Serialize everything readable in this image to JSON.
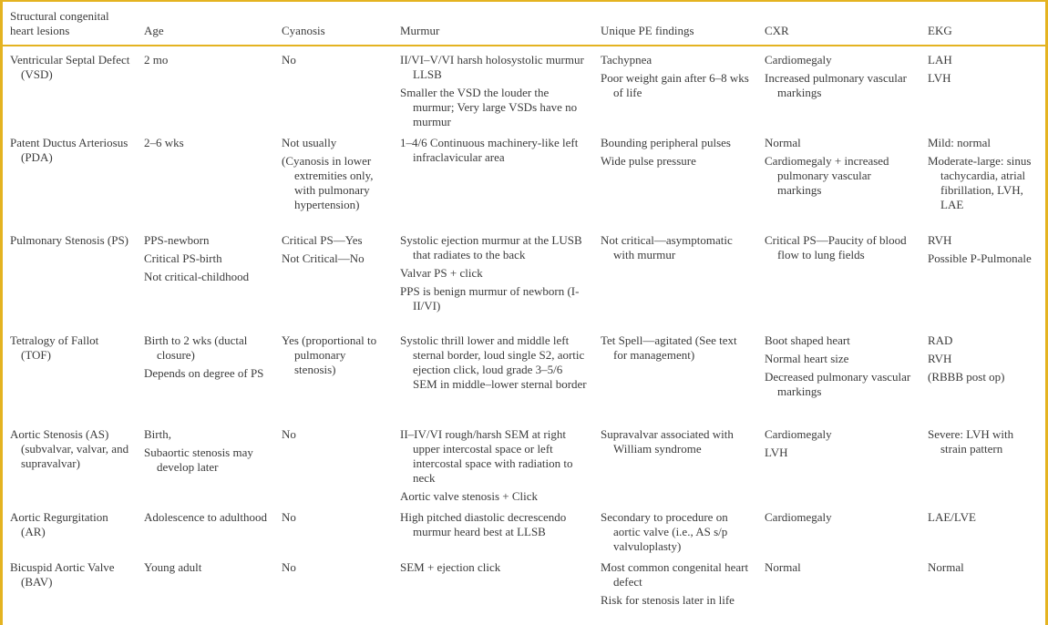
{
  "page": {
    "border_color": "#e4b321",
    "text_color": "#3b3b3b",
    "background_color": "#ffffff"
  },
  "table": {
    "columns": [
      "Structural congenital heart lesions",
      "Age",
      "Cyanosis",
      "Murmur",
      "Unique PE findings",
      "CXR",
      "EKG"
    ],
    "column_keys": [
      "lesion",
      "age",
      "cyanosis",
      "murmur",
      "pe-findings",
      "cxr",
      "ekg"
    ],
    "rows": [
      [
        [
          "Ventricular Septal Defect (VSD)"
        ],
        [
          "2 mo"
        ],
        [
          "No"
        ],
        [
          "II/VI–V/VI harsh holosystolic murmur LLSB",
          "Smaller the VSD the louder the murmur; Very large VSDs have no murmur"
        ],
        [
          "Tachypnea",
          "Poor weight gain after 6–8 wks of life"
        ],
        [
          "Cardiomegaly",
          "Increased pulmonary vascular markings"
        ],
        [
          "LAH",
          "LVH"
        ]
      ],
      [
        [
          "Patent Ductus Arteriosus (PDA)"
        ],
        [
          "2–6 wks"
        ],
        [
          "Not usually",
          "(Cyanosis in lower extremities only, with pulmonary hypertension)"
        ],
        [
          "1–4/6 Continuous machinery-like left infraclavicular area"
        ],
        [
          "Bounding peripheral pulses",
          "Wide pulse pressure"
        ],
        [
          "Normal",
          "Cardiomegaly + increased pulmonary vascular markings"
        ],
        [
          "Mild: normal",
          "Moderate-large: sinus tachycardia, atrial fibrillation, LVH, LAE"
        ]
      ],
      [
        [
          "Pulmonary Stenosis (PS)"
        ],
        [
          "PPS-newborn",
          "Critical PS-birth",
          "Not critical-childhood"
        ],
        [
          "Critical PS—Yes",
          "Not Critical—No"
        ],
        [
          "Systolic ejection murmur at the LUSB that radiates to the back",
          "Valvar PS + click",
          "PPS is benign murmur of newborn (I-II/VI)"
        ],
        [
          "Not critical—asymptomatic with murmur"
        ],
        [
          "Critical PS—Paucity of blood flow to lung fields"
        ],
        [
          "RVH",
          "Possible P-Pulmonale"
        ]
      ],
      [
        [
          "Tetralogy of Fallot (TOF)"
        ],
        [
          "Birth to 2 wks (ductal closure)",
          "Depends on degree of PS"
        ],
        [
          "Yes (proportional to pulmonary stenosis)"
        ],
        [
          "Systolic thrill lower and middle left sternal border, loud single S2, aortic ejection click, loud grade 3–5/6 SEM in middle–lower sternal border"
        ],
        [
          "Tet Spell—agitated (See text for management)"
        ],
        [
          "Boot shaped heart",
          "Normal heart size",
          "Decreased pulmonary vascular markings"
        ],
        [
          "RAD",
          "RVH",
          "(RBBB post op)"
        ]
      ],
      [
        [
          "Aortic Stenosis (AS) (subvalvar, valvar, and supravalvar)"
        ],
        [
          "Birth,",
          "Subaortic stenosis may develop later"
        ],
        [
          "No"
        ],
        [
          "II–IV/VI rough/harsh SEM at right upper intercostal space or left intercostal space with radiation to neck",
          "Aortic valve stenosis + Click"
        ],
        [
          "Supravalvar associated with William syndrome"
        ],
        [
          "Cardiomegaly",
          "LVH"
        ],
        [
          "Severe: LVH with strain pattern"
        ]
      ],
      [
        [
          "Aortic Regurgitation (AR)"
        ],
        [
          "Adolescence to adulthood"
        ],
        [
          "No"
        ],
        [
          "High pitched diastolic decrescendo murmur heard best at LLSB"
        ],
        [
          "Secondary to procedure on aortic valve (i.e., AS s/p valvuloplasty)"
        ],
        [
          "Cardiomegaly"
        ],
        [
          "LAE/LVE"
        ]
      ],
      [
        [
          "Bicuspid Aortic Valve (BAV)"
        ],
        [
          "Young adult"
        ],
        [
          "No"
        ],
        [
          "SEM + ejection click"
        ],
        [
          "Most common congenital heart defect",
          "Risk for stenosis later in life"
        ],
        [
          "Normal"
        ],
        [
          "Normal"
        ]
      ]
    ]
  }
}
